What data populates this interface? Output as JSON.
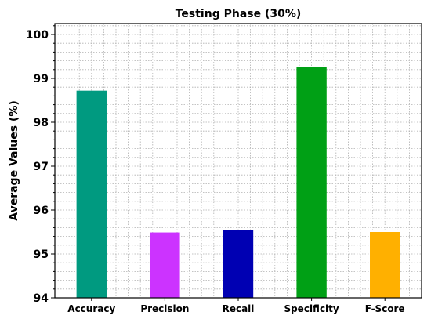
{
  "chart_data": {
    "type": "bar",
    "title": "Testing Phase (30%)",
    "xlabel": "",
    "ylabel": "Average Values (%)",
    "categories": [
      "Accuracy",
      "Precision",
      "Recall",
      "Specificity",
      "F-Score"
    ],
    "values": [
      98.72,
      95.49,
      95.54,
      99.25,
      95.5
    ],
    "colors": [
      "#009a80",
      "#cc33ff",
      "#0000b3",
      "#00a015",
      "#ffb000"
    ],
    "ylim": [
      94,
      100.25
    ],
    "yticks": [
      "94",
      "95",
      "96",
      "97",
      "98",
      "99",
      "100"
    ],
    "grid": true,
    "grid_style": "dotted",
    "legend": "none"
  }
}
